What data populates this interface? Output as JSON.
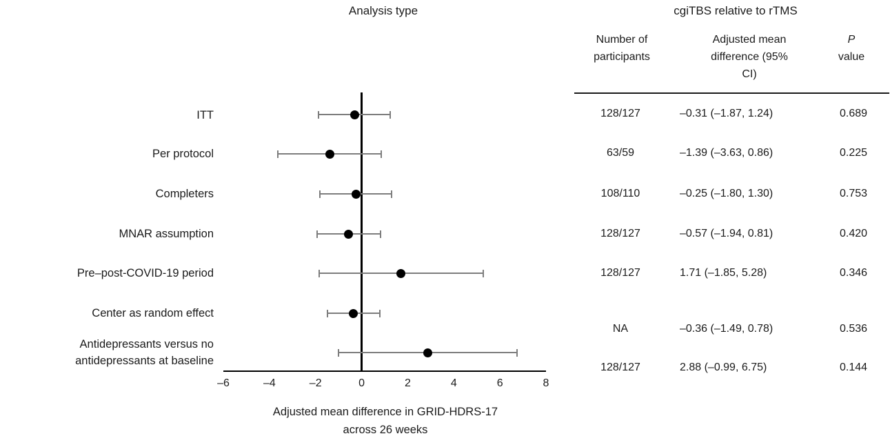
{
  "chart_data": {
    "type": "scatter",
    "subtype": "forest-plot",
    "title": "Analysis type",
    "xlabel_lines": [
      "Adjusted mean difference in GRID-HDRS-17",
      "across 26 weeks"
    ],
    "xlim": [
      -6,
      8
    ],
    "xticks": [
      -6,
      -4,
      -2,
      0,
      2,
      4,
      6,
      8
    ],
    "xtick_labels": [
      "–6",
      "–4",
      "–2",
      "0",
      "2",
      "4",
      "6",
      "8"
    ],
    "reference_line_x": 0,
    "grid": false,
    "legend": false,
    "rows": [
      {
        "label": "ITT",
        "estimate": -0.31,
        "ci_low": -1.87,
        "ci_high": 1.24
      },
      {
        "label": "Per protocol",
        "estimate": -1.39,
        "ci_low": -3.63,
        "ci_high": 0.86
      },
      {
        "label": "Completers",
        "estimate": -0.25,
        "ci_low": -1.8,
        "ci_high": 1.3
      },
      {
        "label": "MNAR assumption",
        "estimate": -0.57,
        "ci_low": -1.94,
        "ci_high": 0.81
      },
      {
        "label": "Pre–post-COVID-19 period",
        "estimate": 1.71,
        "ci_low": -1.85,
        "ci_high": 5.28
      },
      {
        "label": "Center as random effect",
        "estimate": -0.36,
        "ci_low": -1.49,
        "ci_high": 0.78
      },
      {
        "label": "Antidepressants versus no antidepressants at baseline",
        "estimate": 2.88,
        "ci_low": -0.99,
        "ci_high": 6.75
      }
    ],
    "colors": {
      "point": "#000000",
      "ci": "#7d7d7d",
      "axis": "#000000"
    }
  },
  "table": {
    "title": "cgiTBS relative to rTMS",
    "columns": {
      "participants": "Number of participants",
      "difference": "Adjusted mean difference (95% CI)",
      "p_italic": "P",
      "p_rest": "value"
    },
    "rows": [
      {
        "participants": "128/127",
        "difference": "–0.31 (–1.87, 1.24)",
        "p_value": "0.689"
      },
      {
        "participants": "63/59",
        "difference": "–1.39 (–3.63, 0.86)",
        "p_value": "0.225"
      },
      {
        "participants": "108/110",
        "difference": "–0.25 (–1.80, 1.30)",
        "p_value": "0.753"
      },
      {
        "participants": "128/127",
        "difference": "–0.57 (–1.94, 0.81)",
        "p_value": "0.420"
      },
      {
        "participants": "128/127",
        "difference": "1.71 (–1.85, 5.28)",
        "p_value": "0.346"
      },
      {
        "participants": "NA",
        "difference": "–0.36 (–1.49, 0.78)",
        "p_value": "0.536"
      },
      {
        "participants": "128/127",
        "difference": "2.88 (–0.99, 6.75)",
        "p_value": "0.144"
      }
    ]
  }
}
